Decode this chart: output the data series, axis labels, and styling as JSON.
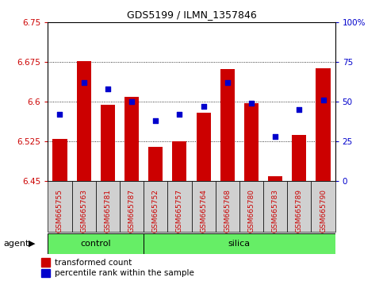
{
  "title": "GDS5199 / ILMN_1357846",
  "samples": [
    "GSM665755",
    "GSM665763",
    "GSM665781",
    "GSM665787",
    "GSM665752",
    "GSM665757",
    "GSM665764",
    "GSM665768",
    "GSM665780",
    "GSM665783",
    "GSM665789",
    "GSM665790"
  ],
  "n_control": 4,
  "n_silica": 8,
  "transformed_count": [
    6.53,
    6.677,
    6.595,
    6.61,
    6.515,
    6.525,
    6.58,
    6.662,
    6.597,
    6.46,
    6.537,
    6.663
  ],
  "percentile_rank": [
    42,
    62,
    58,
    50,
    38,
    42,
    47,
    62,
    49,
    28,
    45,
    51
  ],
  "ylim_left": [
    6.45,
    6.75
  ],
  "ylim_right": [
    0,
    100
  ],
  "yticks_left": [
    6.45,
    6.525,
    6.6,
    6.675,
    6.75
  ],
  "yticks_right": [
    0,
    25,
    50,
    75,
    100
  ],
  "ytick_labels_left": [
    "6.45",
    "6.525",
    "6.6",
    "6.675",
    "6.75"
  ],
  "ytick_labels_right": [
    "0",
    "25",
    "50",
    "75",
    "100%"
  ],
  "bar_color": "#cc0000",
  "dot_color": "#0000cc",
  "plot_bg": "#ffffff",
  "bar_baseline": 6.45,
  "control_bg": "#c8c8c8",
  "silica_bg": "#c8c8c8",
  "group_green": "#66ee66",
  "legend_bar_label": "transformed count",
  "legend_dot_label": "percentile rank within the sample",
  "tick_color_left": "#cc0000",
  "tick_color_right": "#0000cc",
  "title_fontsize": 9,
  "tick_fontsize": 7.5,
  "label_fontsize": 8
}
